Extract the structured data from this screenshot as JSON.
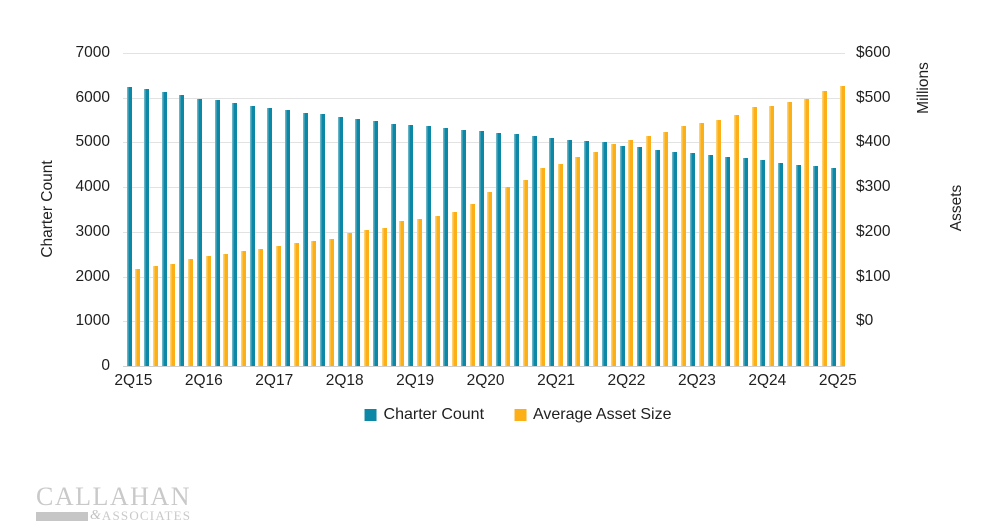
{
  "chart": {
    "left_axis_title": "Charter Count",
    "right_axis_title_top": "Millions",
    "right_axis_title_mid": "Assets",
    "left_ticks": [
      "7000",
      "6000",
      "5000",
      "4000",
      "3000",
      "2000",
      "1000",
      "0"
    ],
    "right_ticks": [
      "$600",
      "$500",
      "$400",
      "$300",
      "$200",
      "$100",
      "$0"
    ],
    "x_ticks": [
      "2Q15",
      "2Q16",
      "2Q17",
      "2Q18",
      "2Q19",
      "2Q20",
      "2Q21",
      "2Q22",
      "2Q23",
      "2Q24",
      "2Q25"
    ],
    "legend": [
      {
        "label": "Charter Count",
        "color": "#0c87a6"
      },
      {
        "label": "Average Asset Size",
        "color": "#fcaf16"
      }
    ]
  },
  "chart_data": {
    "type": "bar",
    "categories": [
      "2Q15",
      "3Q15",
      "4Q15",
      "1Q16",
      "2Q16",
      "3Q16",
      "4Q16",
      "1Q17",
      "2Q17",
      "3Q17",
      "4Q17",
      "1Q18",
      "2Q18",
      "3Q18",
      "4Q18",
      "1Q19",
      "2Q19",
      "3Q19",
      "4Q19",
      "1Q20",
      "2Q20",
      "3Q20",
      "4Q20",
      "1Q21",
      "2Q21",
      "3Q21",
      "4Q21",
      "1Q22",
      "2Q22",
      "3Q22",
      "4Q22",
      "1Q23",
      "2Q23",
      "3Q23",
      "4Q23",
      "1Q24",
      "2Q24",
      "3Q24",
      "4Q24",
      "1Q25",
      "2Q25"
    ],
    "series": [
      {
        "name": "Charter Count",
        "axis": "left",
        "color": "#0c87a6",
        "values": [
          6250,
          6195,
          6120,
          6060,
          5970,
          5940,
          5880,
          5820,
          5775,
          5730,
          5655,
          5625,
          5565,
          5530,
          5470,
          5420,
          5395,
          5370,
          5330,
          5285,
          5245,
          5215,
          5180,
          5135,
          5110,
          5060,
          5040,
          5000,
          4925,
          4895,
          4835,
          4790,
          4760,
          4715,
          4670,
          4650,
          4600,
          4550,
          4505,
          4465,
          4425
        ]
      },
      {
        "name": "Average Asset Size",
        "axis": "right",
        "color": "#fcaf16",
        "values": [
          186,
          191,
          196,
          205,
          210,
          214,
          221,
          225,
          230,
          235,
          239,
          244,
          255,
          261,
          265,
          278,
          282,
          287,
          295,
          311,
          334,
          344,
          356,
          380,
          388,
          400,
          410,
          425,
          434,
          440,
          449,
          460,
          465,
          472,
          482,
          497,
          498,
          507,
          511,
          528,
          536
        ]
      }
    ],
    "left_axis": {
      "label": "Charter Count",
      "min": 0,
      "max": 7000,
      "tick_step": 1000
    },
    "right_axis": {
      "label": "Assets (Millions)",
      "min": 0,
      "max": 600,
      "tick_step": 100,
      "unit": "$M"
    },
    "x_axis": {
      "tick_labels_shown_every": "4 quarters",
      "first": "2Q15",
      "last": "2Q25"
    },
    "grid": true,
    "legend_position": "bottom"
  },
  "logo": {
    "line1": "CALLAHAN",
    "amp": "&",
    "line2": "ASSOCIATES"
  },
  "colors": {
    "charter_blue": "#0c87a6",
    "asset_orange": "#fcaf16",
    "gridline": "#e2e2e2",
    "text": "#1f1f1f",
    "logo_gray": "#c9c9c9"
  }
}
